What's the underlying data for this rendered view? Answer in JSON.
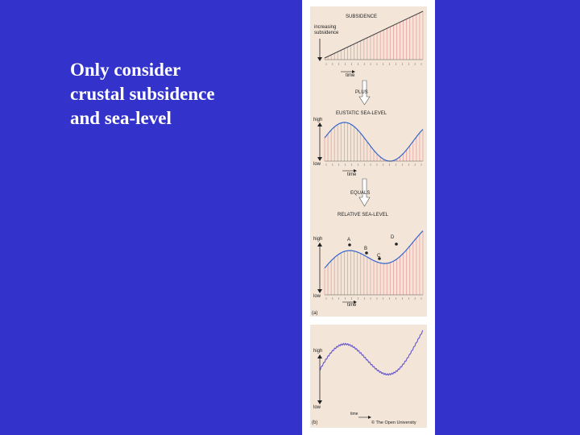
{
  "slide": {
    "lines": [
      "Only consider",
      "crustal subsidence",
      "and sea-level"
    ]
  },
  "figure": {
    "panel_a": {
      "label": "(a)",
      "subsidence": {
        "title": "SUBSIDENCE",
        "ylabel_line1": "increasing",
        "ylabel_line2": "subsidence",
        "xlabel": "time"
      },
      "op1": "PLUS",
      "eustatic": {
        "title": "EUSTATIC SEA-LEVEL",
        "high": "high",
        "low": "low",
        "xlabel": "time"
      },
      "op2": "EQUALS",
      "relative": {
        "title": "RELATIVE SEA-LEVEL",
        "high": "high",
        "low": "low",
        "xlabel": "time",
        "points": [
          "A",
          "B",
          "C",
          "D"
        ]
      }
    },
    "panel_b": {
      "label": "(b)",
      "high": "high",
      "low": "low",
      "xlabel": "time",
      "copyright": "© The Open University"
    },
    "colors": {
      "panel_bg": "#f3e6d9",
      "stripe": "#e9a0a0",
      "curve": "#3366cc",
      "subsidence_line": "#444444"
    }
  }
}
